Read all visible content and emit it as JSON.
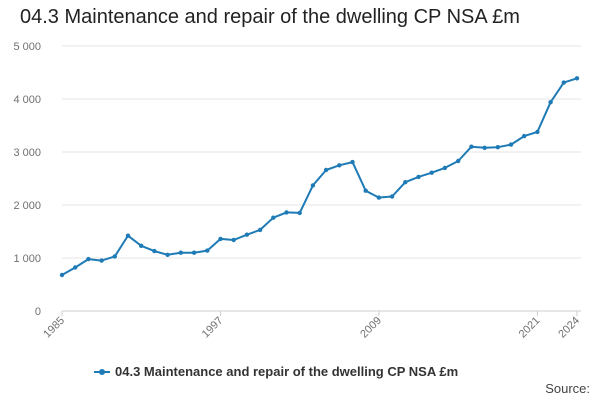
{
  "chart_data": {
    "type": "line",
    "title": "04.3 Maintenance and repair of the dwelling CP NSA £m",
    "xlabel": "",
    "ylabel": "",
    "ylim": [
      0,
      5000
    ],
    "yticks": [
      0,
      1000,
      2000,
      3000,
      4000,
      5000
    ],
    "ytick_labels": [
      "0",
      "1 000",
      "2 000",
      "3 000",
      "4 000",
      "5 000"
    ],
    "xlim": [
      1985,
      2024
    ],
    "xtick_labels": [
      "1985",
      "1997",
      "2009",
      "2021",
      "2024"
    ],
    "grid": true,
    "legend_position": "bottom",
    "color": "#1f7bb6",
    "series": [
      {
        "name": "04.3 Maintenance and repair of the dwelling CP NSA £m",
        "x": [
          1985,
          1986,
          1987,
          1988,
          1989,
          1990,
          1991,
          1992,
          1993,
          1994,
          1995,
          1996,
          1997,
          1998,
          1999,
          2000,
          2001,
          2002,
          2003,
          2004,
          2005,
          2006,
          2007,
          2008,
          2009,
          2010,
          2011,
          2012,
          2013,
          2014,
          2015,
          2016,
          2017,
          2018,
          2019,
          2020,
          2021,
          2022,
          2023,
          2024
        ],
        "values": [
          680,
          820,
          980,
          950,
          1030,
          1420,
          1230,
          1130,
          1060,
          1100,
          1100,
          1140,
          1360,
          1340,
          1440,
          1530,
          1760,
          1860,
          1850,
          2370,
          2660,
          2750,
          2810,
          2270,
          2140,
          2160,
          2430,
          2530,
          2610,
          2700,
          2830,
          3100,
          3080,
          3090,
          3140,
          3300,
          3380,
          3940,
          4310,
          4390
        ]
      }
    ]
  },
  "legend": {
    "label": "04.3 Maintenance and repair of the dwelling CP NSA £m"
  },
  "source": {
    "label": "Source:"
  }
}
